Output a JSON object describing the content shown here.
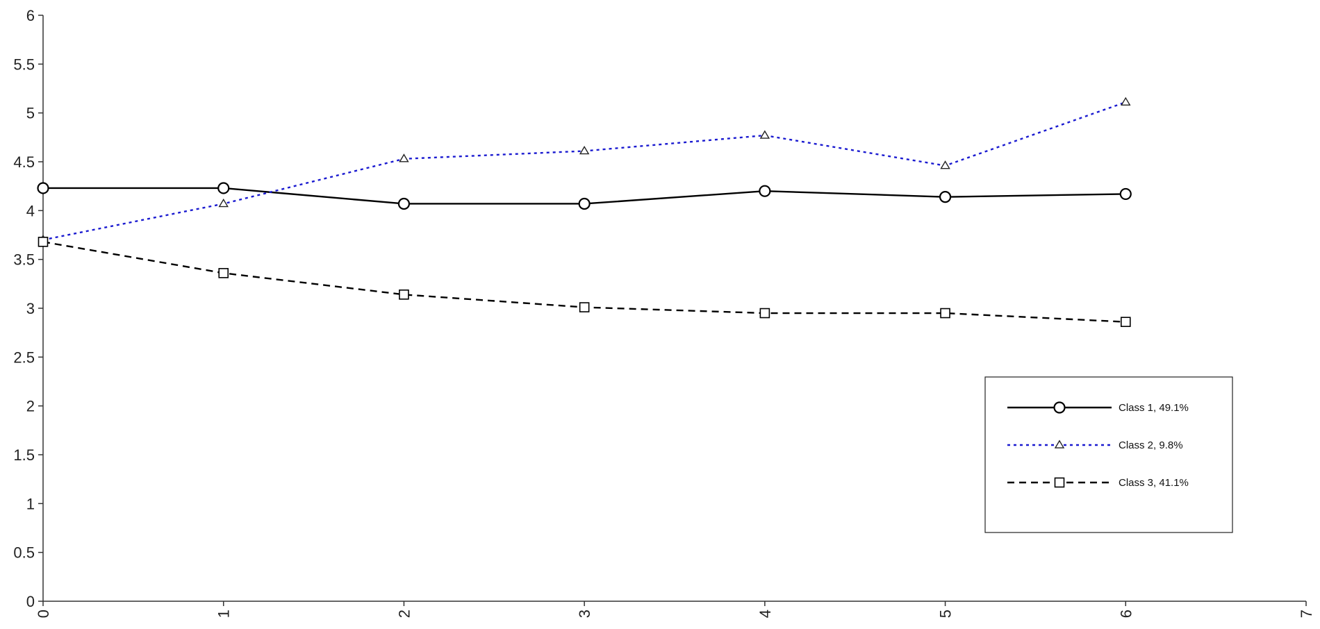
{
  "chart_data": {
    "type": "line",
    "title": "",
    "xlabel": "",
    "ylabel": "",
    "xlim": [
      0,
      7
    ],
    "ylim": [
      0,
      6
    ],
    "x_ticks": [
      "0",
      "1",
      "2",
      "3",
      "4",
      "5",
      "6",
      "7"
    ],
    "y_ticks": [
      "0",
      "0.5",
      "1",
      "1.5",
      "2",
      "2.5",
      "3",
      "3.5",
      "4",
      "4.5",
      "5",
      "5.5",
      "6"
    ],
    "grid": false,
    "legend_position": "right",
    "series": [
      {
        "name": "Class 1, 49.1%",
        "x": [
          0,
          1,
          2,
          3,
          4,
          5,
          6
        ],
        "y": [
          4.23,
          4.23,
          4.07,
          4.07,
          4.2,
          4.14,
          4.17
        ],
        "color": "#000000",
        "line_style": "solid",
        "marker": "circle"
      },
      {
        "name": "Class 2, 9.8%",
        "x": [
          0,
          1,
          2,
          3,
          4,
          5,
          6
        ],
        "y": [
          3.7,
          4.07,
          4.53,
          4.61,
          4.77,
          4.46,
          5.11
        ],
        "color": "#1a1ad0",
        "line_style": "dotted",
        "marker": "triangle"
      },
      {
        "name": "Class 3, 41.1%",
        "x": [
          0,
          1,
          2,
          3,
          4,
          5,
          6
        ],
        "y": [
          3.68,
          3.36,
          3.14,
          3.01,
          2.95,
          2.95,
          2.86
        ],
        "color": "#000000",
        "line_style": "dashed",
        "marker": "square"
      }
    ]
  }
}
